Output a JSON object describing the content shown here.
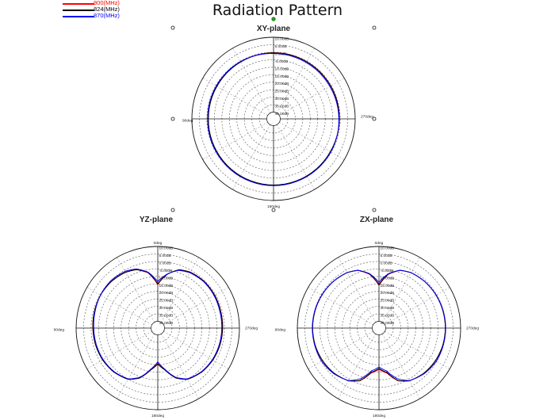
{
  "header": {
    "title": "Radiation Pattern"
  },
  "colors": {
    "freq_800": "#ff0000",
    "freq_824": "#000000",
    "freq_870": "#0000ff",
    "ring": "#555555",
    "outer": "#111111"
  },
  "legend": [
    {
      "label": "800(MHz)",
      "color": "#ff0000"
    },
    {
      "label": "824(MHz)",
      "color": "#000000"
    },
    {
      "label": "870(MHz)",
      "color": "#0000ff"
    }
  ],
  "chart_data": [
    {
      "type": "polar",
      "title": "XY-plane",
      "r_unit": "dB",
      "r_ticks": [
        "10.00dB",
        "5.00dB",
        "0.00dB",
        "-5.00dB",
        "10.00dB",
        "15.00dB",
        "20.00dB",
        "25.00dB",
        "30.00dB",
        "35.00dB",
        "40.00dB"
      ],
      "rlim": [
        -40,
        10
      ],
      "angle_labels": {
        "top": "",
        "left": "90deg",
        "bottom": "180deg",
        "right": "270deg"
      },
      "angles_deg": [
        0,
        30,
        60,
        90,
        120,
        150,
        180,
        210,
        240,
        270,
        300,
        330
      ],
      "series": [
        {
          "name": "800(MHz)",
          "color": "#ff0000",
          "values_db": [
            -0.3,
            -0.5,
            -0.8,
            -0.9,
            -0.7,
            -0.4,
            -0.2,
            -0.3,
            -0.6,
            -0.5,
            -0.4,
            -0.3
          ]
        },
        {
          "name": "824(MHz)",
          "color": "#000000",
          "values_db": [
            -0.4,
            -0.6,
            -0.9,
            -1.0,
            -0.8,
            -0.5,
            -0.3,
            -0.4,
            -0.7,
            -0.6,
            -0.5,
            -0.4
          ]
        },
        {
          "name": "870(MHz)",
          "color": "#0000ff",
          "values_db": [
            -0.8,
            -0.3,
            -0.4,
            -0.5,
            -0.3,
            0.0,
            0.1,
            0.0,
            -0.3,
            -0.9,
            -1.1,
            -1.0
          ]
        }
      ]
    },
    {
      "type": "polar",
      "title": "YZ-plane",
      "r_unit": "dB",
      "r_ticks": [
        "10.00dB",
        "5.00dB",
        "0.00dB",
        "-5.00dB",
        "10.00dB",
        "15.00dB",
        "20.00dB",
        "25.00dB",
        "30.00dB",
        "35.00dB",
        "40.00dB"
      ],
      "rlim": [
        -40,
        10
      ],
      "angle_labels": {
        "top": "0deg",
        "left": "90deg",
        "bottom": "180deg",
        "right": "270deg"
      },
      "angles_deg": [
        0,
        10,
        20,
        30,
        45,
        60,
        75,
        90,
        105,
        120,
        135,
        150,
        160,
        170,
        180,
        190,
        200,
        210,
        225,
        240,
        255,
        270,
        285,
        300,
        315,
        330,
        340,
        350
      ],
      "series": [
        {
          "name": "800(MHz)",
          "color": "#ff0000",
          "values_db": [
            -15.5,
            -7,
            -3,
            -1.5,
            -0.6,
            -0.4,
            -0.8,
            -1.2,
            -1.5,
            -2,
            -3,
            -5,
            -9,
            -16,
            -21,
            -16,
            -9,
            -5,
            -3,
            -2,
            -1.5,
            -1.2,
            -1,
            -0.6,
            -0.5,
            -1.3,
            -3,
            -8
          ]
        },
        {
          "name": "824(MHz)",
          "color": "#000000",
          "values_db": [
            -15,
            -6.8,
            -3,
            -1.5,
            -0.6,
            -0.4,
            -0.8,
            -1.2,
            -1.5,
            -2,
            -3,
            -5,
            -9,
            -16,
            -20.5,
            -16,
            -9,
            -5,
            -3,
            -2,
            -1.5,
            -1.3,
            -1.1,
            -0.7,
            -0.6,
            -1.4,
            -3.1,
            -8
          ]
        },
        {
          "name": "870(MHz)",
          "color": "#0000ff",
          "values_db": [
            -13.5,
            -6.5,
            -2.5,
            -0.8,
            0.0,
            -0.4,
            -1.2,
            -1.8,
            -2,
            -2.4,
            -3.3,
            -5.3,
            -9.5,
            -16.5,
            -22,
            -16.5,
            -9.5,
            -5.3,
            -3.3,
            -2.4,
            -2,
            -1.8,
            -1.6,
            -1.1,
            -0.9,
            -1.8,
            -3.5,
            -7.8
          ]
        }
      ]
    },
    {
      "type": "polar",
      "title": "ZX-plane",
      "r_unit": "dB",
      "r_ticks": [
        "10.00dB",
        "5.00dB",
        "0.00dB",
        "-5.00dB",
        "10.00dB",
        "15.00dB",
        "20.00dB",
        "25.00dB",
        "30.00dB",
        "35.00dB",
        "40.00dB"
      ],
      "rlim": [
        -40,
        10
      ],
      "angle_labels": {
        "top": "0deg",
        "left": "90deg",
        "bottom": "180deg",
        "right": "270deg"
      },
      "angles_deg": [
        0,
        10,
        20,
        30,
        45,
        60,
        75,
        90,
        105,
        120,
        135,
        150,
        160,
        170,
        180,
        190,
        200,
        210,
        225,
        240,
        255,
        270,
        285,
        300,
        315,
        330,
        340,
        350
      ],
      "series": [
        {
          "name": "800(MHz)",
          "color": "#ff0000",
          "values_db": [
            -16,
            -8,
            -3.5,
            -1.8,
            -0.9,
            -0.5,
            -0.3,
            -0.2,
            -0.4,
            -1,
            -2,
            -3.8,
            -7,
            -14,
            -17,
            -14,
            -7,
            -3.8,
            -2,
            -1,
            -0.4,
            -0.2,
            -0.3,
            -0.5,
            -0.9,
            -1.8,
            -3.5,
            -8
          ]
        },
        {
          "name": "824(MHz)",
          "color": "#000000",
          "values_db": [
            -15.5,
            -7.8,
            -3.4,
            -1.8,
            -0.9,
            -0.5,
            -0.3,
            -0.2,
            -0.4,
            -1,
            -2,
            -3.9,
            -7.2,
            -14.5,
            -17.5,
            -14.5,
            -7.2,
            -3.9,
            -2,
            -1,
            -0.4,
            -0.2,
            -0.3,
            -0.5,
            -0.9,
            -1.8,
            -3.4,
            -7.8
          ]
        },
        {
          "name": "870(MHz)",
          "color": "#0000ff",
          "values_db": [
            -14,
            -7.5,
            -3.5,
            -1.8,
            -0.9,
            -0.4,
            -0.1,
            0.0,
            -0.1,
            -0.3,
            -1.6,
            -4,
            -8.5,
            -15.5,
            -18.5,
            -15.5,
            -8.5,
            -4,
            -1.6,
            -0.3,
            -0.1,
            0.0,
            -0.1,
            -0.4,
            -0.9,
            -1.8,
            -3.5,
            -7.5
          ]
        }
      ]
    }
  ]
}
